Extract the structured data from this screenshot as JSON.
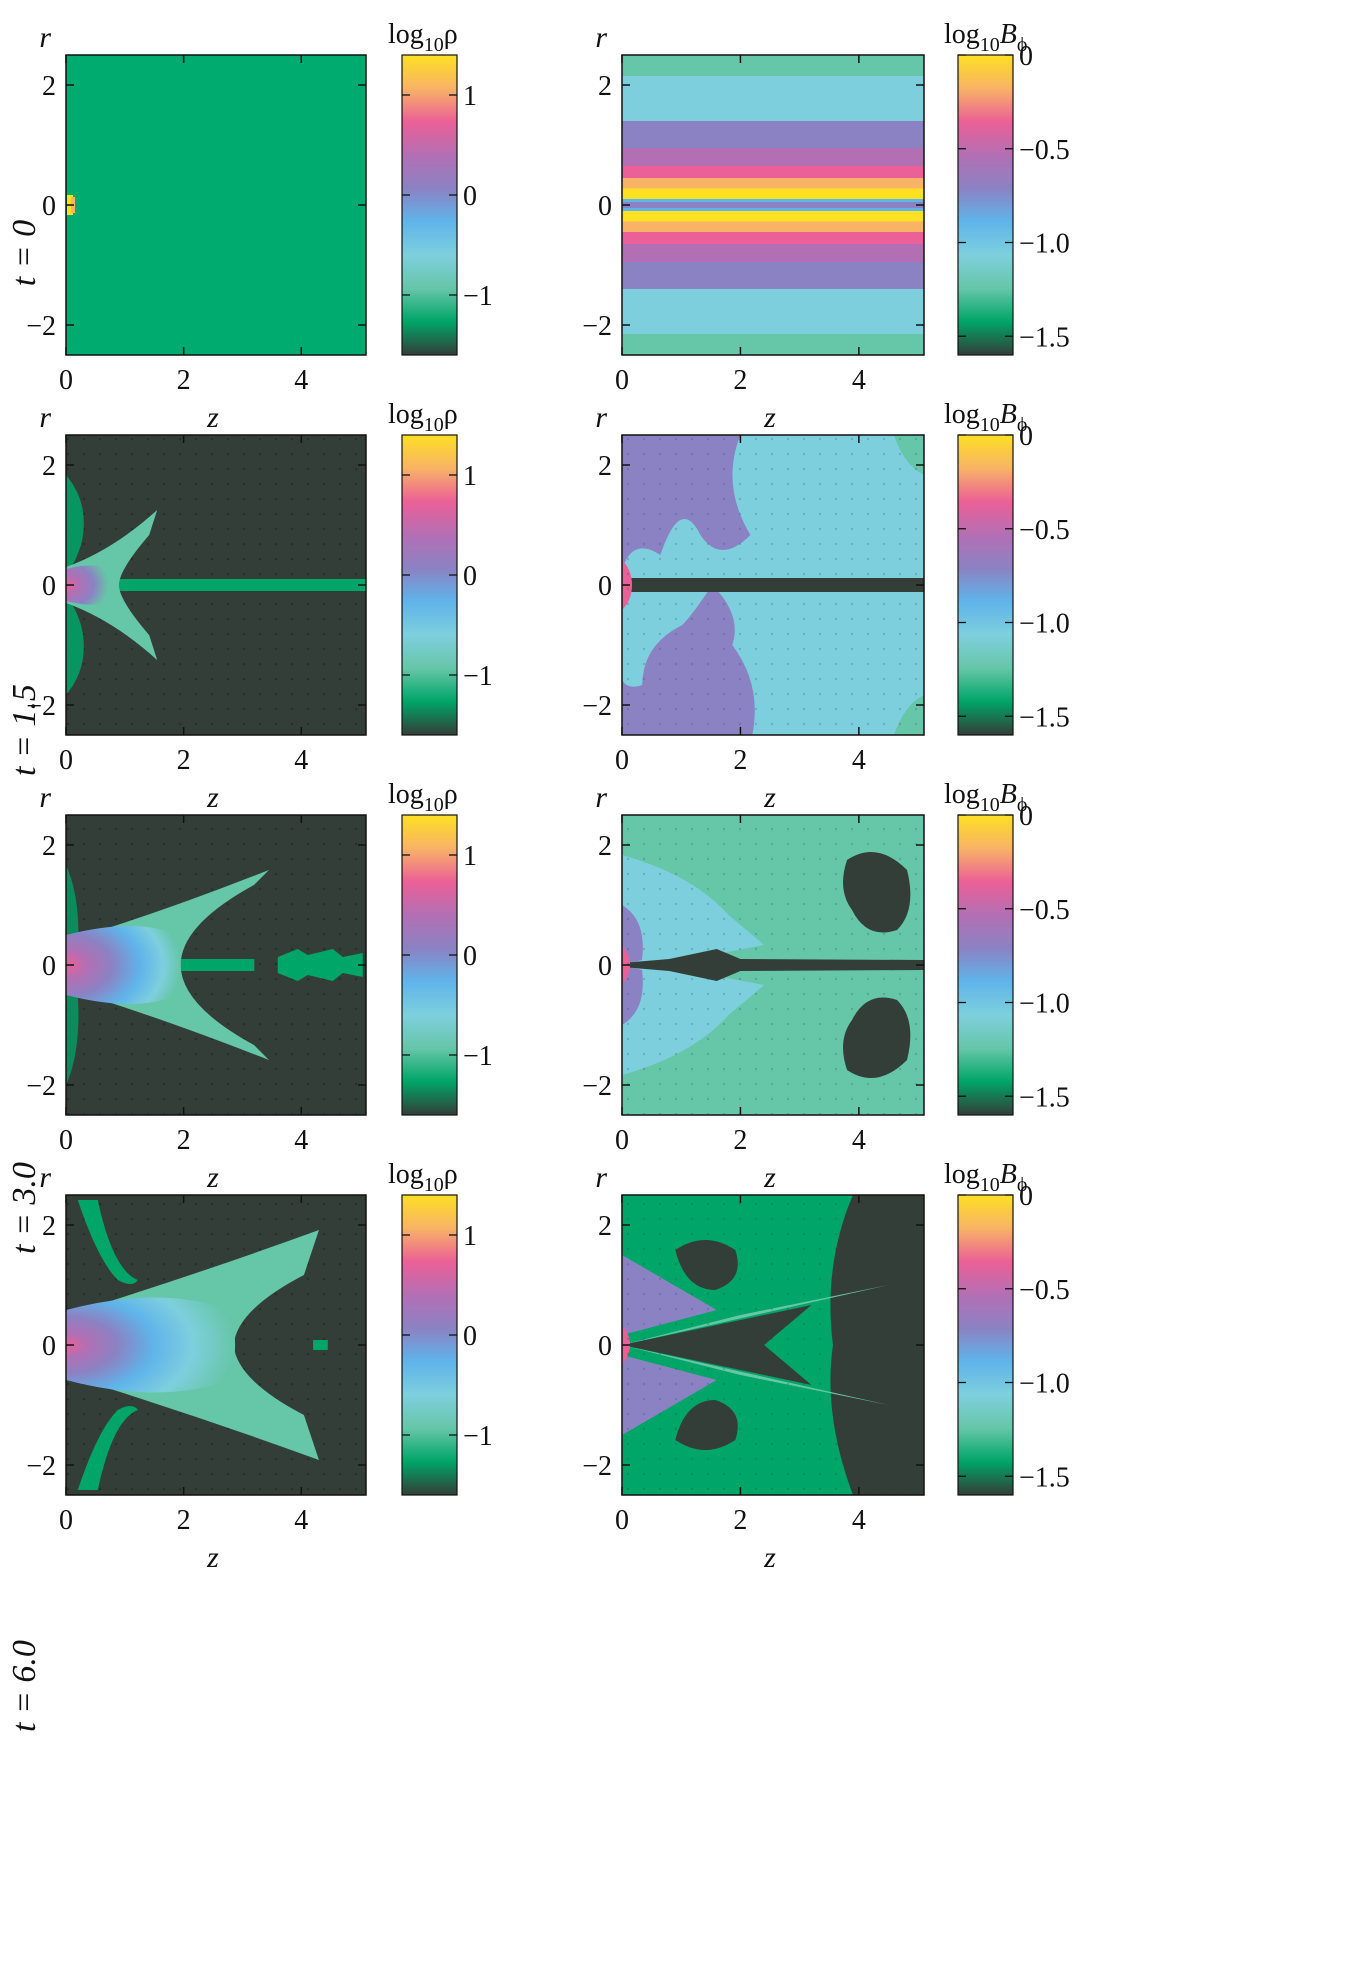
{
  "figure": {
    "time_label_prefix": "t = ",
    "rows": [
      {
        "time": "0"
      },
      {
        "time": "1.5"
      },
      {
        "time": "3.0"
      },
      {
        "time": "6.0"
      }
    ]
  },
  "colors": {
    "colormap": [
      "#333e39",
      "#00a568",
      "#66c6a8",
      "#7ecfdd",
      "#5fb4ea",
      "#8b82c3",
      "#b36fb4",
      "#eb6096",
      "#f8b366",
      "#fee023"
    ],
    "background_density": "#00ab6f",
    "dark": "#333e39"
  },
  "chart_data": [
    {
      "type": "heatmap",
      "panel": "density",
      "time": "0",
      "xlabel": "z",
      "ylabel": "r",
      "xlim": [
        0,
        5.1
      ],
      "ylim": [
        -2.5,
        2.5
      ],
      "xticks": [
        "0",
        "2",
        "4"
      ],
      "yticks": [
        "−2",
        "0",
        "2"
      ],
      "colorbar": {
        "label_main": "log",
        "label_sub": "10",
        "label_var": "ρ",
        "range": [
          -1.6,
          1.4
        ],
        "ticks": [
          "1",
          "0",
          "−1"
        ],
        "tick_values": [
          1,
          0,
          -1
        ]
      }
    },
    {
      "type": "heatmap",
      "panel": "magnetic",
      "time": "0",
      "xlabel": "z",
      "ylabel": "r",
      "xlim": [
        0,
        5.1
      ],
      "ylim": [
        -2.5,
        2.5
      ],
      "xticks": [
        "0",
        "2",
        "4"
      ],
      "yticks": [
        "−2",
        "0",
        "2"
      ],
      "colorbar": {
        "label_main": "log",
        "label_sub": "10",
        "label_var": "B",
        "label_varsub": "ϕ",
        "range": [
          -1.6,
          0.0
        ],
        "ticks": [
          "0",
          "−0.5",
          "−1.0",
          "−1.5"
        ],
        "tick_values": [
          0,
          -0.5,
          -1.0,
          -1.5
        ]
      }
    },
    {
      "type": "heatmap",
      "panel": "density",
      "time": "1.5",
      "xlabel": "z",
      "ylabel": "r",
      "xlim": [
        0,
        5.1
      ],
      "ylim": [
        -2.5,
        2.5
      ],
      "xticks": [
        "0",
        "2",
        "4"
      ],
      "yticks": [
        "−2",
        "0",
        "2"
      ],
      "colorbar": {
        "label_main": "log",
        "label_sub": "10",
        "label_var": "ρ",
        "range": [
          -1.6,
          1.4
        ],
        "ticks": [
          "1",
          "0",
          "−1"
        ],
        "tick_values": [
          1,
          0,
          -1
        ]
      }
    },
    {
      "type": "heatmap",
      "panel": "magnetic",
      "time": "1.5",
      "xlabel": "z",
      "ylabel": "r",
      "xlim": [
        0,
        5.1
      ],
      "ylim": [
        -2.5,
        2.5
      ],
      "xticks": [
        "0",
        "2",
        "4"
      ],
      "yticks": [
        "−2",
        "0",
        "2"
      ],
      "colorbar": {
        "label_main": "log",
        "label_sub": "10",
        "label_var": "B",
        "label_varsub": "ϕ",
        "range": [
          -1.6,
          0.0
        ],
        "ticks": [
          "0",
          "−0.5",
          "−1.0",
          "−1.5"
        ],
        "tick_values": [
          0,
          -0.5,
          -1.0,
          -1.5
        ]
      }
    },
    {
      "type": "heatmap",
      "panel": "density",
      "time": "3.0",
      "xlabel": "z",
      "ylabel": "r",
      "xlim": [
        0,
        5.1
      ],
      "ylim": [
        -2.5,
        2.5
      ],
      "xticks": [
        "0",
        "2",
        "4"
      ],
      "yticks": [
        "−2",
        "0",
        "2"
      ],
      "colorbar": {
        "label_main": "log",
        "label_sub": "10",
        "label_var": "ρ",
        "range": [
          -1.6,
          1.4
        ],
        "ticks": [
          "1",
          "0",
          "−1"
        ],
        "tick_values": [
          1,
          0,
          -1
        ]
      }
    },
    {
      "type": "heatmap",
      "panel": "magnetic",
      "time": "3.0",
      "xlabel": "z",
      "ylabel": "r",
      "xlim": [
        0,
        5.1
      ],
      "ylim": [
        -2.5,
        2.5
      ],
      "xticks": [
        "0",
        "2",
        "4"
      ],
      "yticks": [
        "−2",
        "0",
        "2"
      ],
      "colorbar": {
        "label_main": "log",
        "label_sub": "10",
        "label_var": "B",
        "label_varsub": "ϕ",
        "range": [
          -1.6,
          0.0
        ],
        "ticks": [
          "0",
          "−0.5",
          "−1.0",
          "−1.5"
        ],
        "tick_values": [
          0,
          -0.5,
          -1.0,
          -1.5
        ]
      }
    },
    {
      "type": "heatmap",
      "panel": "density",
      "time": "6.0",
      "xlabel": "z",
      "ylabel": "r",
      "xlim": [
        0,
        5.1
      ],
      "ylim": [
        -2.5,
        2.5
      ],
      "xticks": [
        "0",
        "2",
        "4"
      ],
      "yticks": [
        "−2",
        "0",
        "2"
      ],
      "colorbar": {
        "label_main": "log",
        "label_sub": "10",
        "label_var": "ρ",
        "range": [
          -1.6,
          1.4
        ],
        "ticks": [
          "1",
          "0",
          "−1"
        ],
        "tick_values": [
          1,
          0,
          -1
        ]
      }
    },
    {
      "type": "heatmap",
      "panel": "magnetic",
      "time": "6.0",
      "xlabel": "z",
      "ylabel": "r",
      "xlim": [
        0,
        5.1
      ],
      "ylim": [
        -2.5,
        2.5
      ],
      "xticks": [
        "0",
        "2",
        "4"
      ],
      "yticks": [
        "−2",
        "0",
        "2"
      ],
      "colorbar": {
        "label_main": "log",
        "label_sub": "10",
        "label_var": "B",
        "label_varsub": "ϕ",
        "range": [
          -1.6,
          0.0
        ],
        "ticks": [
          "0",
          "−0.5",
          "−1.0",
          "−1.5"
        ],
        "tick_values": [
          0,
          -0.5,
          -1.0,
          -1.5
        ]
      }
    }
  ]
}
